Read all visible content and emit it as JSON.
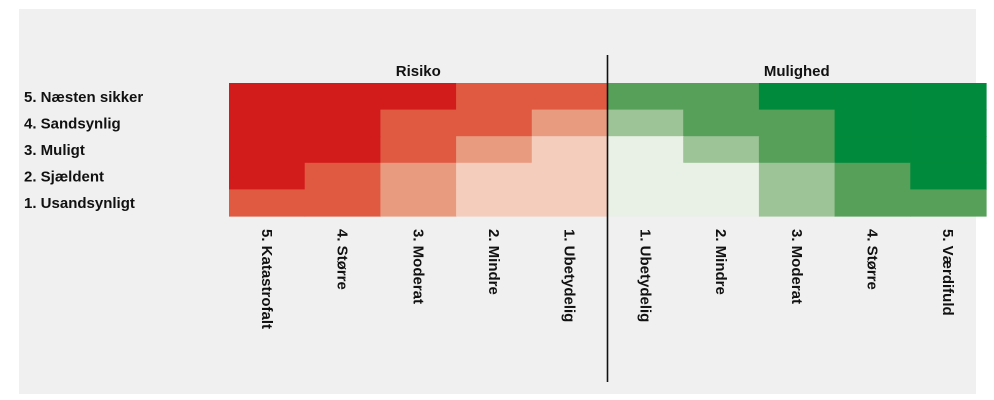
{
  "chart_data": {
    "type": "heatmap",
    "title": "",
    "groups": [
      {
        "label": "Risiko"
      },
      {
        "label": "Mulighed"
      }
    ],
    "y_labels": [
      "5. Næsten sikker",
      "4. Sandsynlig",
      "3. Muligt",
      "2. Sjældent",
      "1. Usandsynligt"
    ],
    "x_labels": [
      "5. Katastrofalt",
      "4. Større",
      "3. Moderat",
      "2. Mindre",
      "1. Ubetydelig",
      "1. Ubetydelig",
      "2. Mindre",
      "3. Moderat",
      "4. Større",
      "5. Værdifuld"
    ],
    "levels": [
      [
        5,
        5,
        5,
        4,
        4,
        4,
        4,
        5,
        5,
        5
      ],
      [
        5,
        5,
        4,
        4,
        3,
        3,
        4,
        4,
        5,
        5
      ],
      [
        5,
        5,
        4,
        3,
        2,
        2,
        3,
        4,
        5,
        5
      ],
      [
        5,
        4,
        3,
        2,
        2,
        2,
        2,
        3,
        4,
        5
      ],
      [
        4,
        4,
        3,
        2,
        2,
        2,
        2,
        3,
        4,
        4
      ]
    ],
    "colors": {
      "risk": {
        "2": "#f5cdbd",
        "3": "#e99b80",
        "4": "#e05a42",
        "5": "#d21c1c"
      },
      "opportunity": {
        "2": "#e9f0e6",
        "3": "#9cc496",
        "4": "#56a05a",
        "5": "#008a3b"
      }
    },
    "divider_color": "#111111",
    "background_color": "#f0f0f0"
  }
}
